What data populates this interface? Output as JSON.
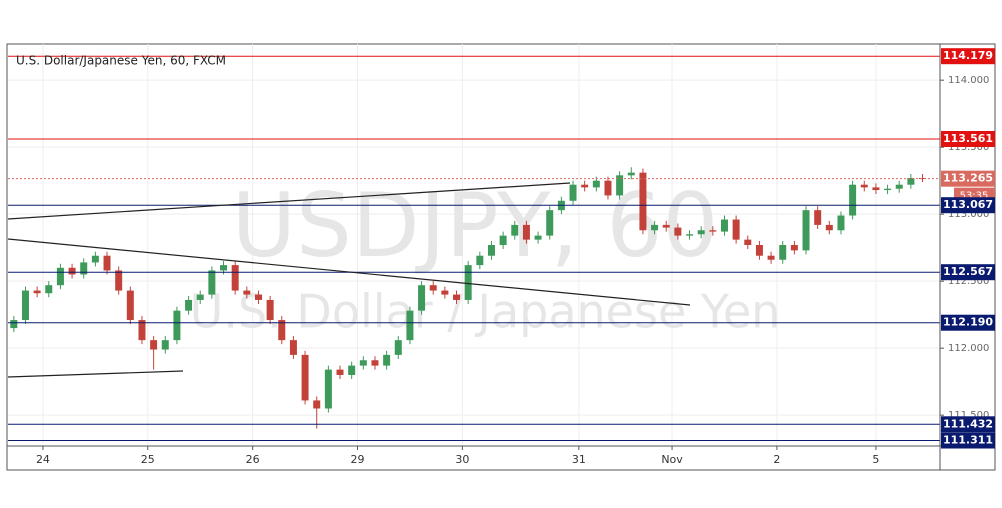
{
  "chart_data": {
    "type": "candlestick",
    "title": "U.S. Dollar/Japanese Yen, 60, FXCM",
    "watermark": "USDJPY, 60",
    "watermark_subtitle": "U.S. Dollar / Japanese Yen",
    "countdown": "53:35",
    "up_color": "#3d9a5a",
    "down_color": "#c2423a",
    "xlim": [
      0,
      80
    ],
    "ylim": [
      111.27,
      114.27
    ],
    "xticks": [
      {
        "value": 3,
        "label": "24"
      },
      {
        "value": 12,
        "label": "25"
      },
      {
        "value": 21,
        "label": "26"
      },
      {
        "value": 30,
        "label": "29"
      },
      {
        "value": 39,
        "label": "30"
      },
      {
        "value": 49,
        "label": "31"
      },
      {
        "value": 57,
        "label": "Nov"
      },
      {
        "value": 66,
        "label": "2"
      },
      {
        "value": 74.5,
        "label": "5"
      }
    ],
    "yticks": [
      {
        "value": 111.5,
        "label": "111.500"
      },
      {
        "value": 112,
        "label": "112.000"
      },
      {
        "value": 112.5,
        "label": "112.500"
      },
      {
        "value": 113,
        "label": "113.000"
      },
      {
        "value": 113.5,
        "label": "113.500"
      },
      {
        "value": 114,
        "label": "114.000"
      }
    ],
    "grid": true,
    "levels": [
      {
        "value": 114.179,
        "label": "114.179",
        "color": "#e31010",
        "dashed": false
      },
      {
        "value": 113.561,
        "label": "113.561",
        "color": "#e31010",
        "dashed": false
      },
      {
        "value": 113.265,
        "label": "113.265",
        "color": "#d86a60",
        "dashed": true
      },
      {
        "value": 113.067,
        "label": "113.067",
        "color": "#0a1a6e",
        "dashed": false
      },
      {
        "value": 112.567,
        "label": "112.567",
        "color": "#0a1a6e",
        "dashed": false
      },
      {
        "value": 112.19,
        "label": "112.190",
        "color": "#0a1a6e",
        "dashed": false
      },
      {
        "value": 111.432,
        "label": "111.432",
        "color": "#0a1a6e",
        "dashed": false
      },
      {
        "value": 111.311,
        "label": "111.311",
        "color": "#0a1a6e",
        "dashed": false
      }
    ],
    "ohlc": [
      [
        112.15,
        112.24,
        112.12,
        112.21
      ],
      [
        112.21,
        112.46,
        112.18,
        112.43
      ],
      [
        112.43,
        112.46,
        112.38,
        112.41
      ],
      [
        112.41,
        112.5,
        112.38,
        112.47
      ],
      [
        112.47,
        112.63,
        112.44,
        112.6
      ],
      [
        112.6,
        112.63,
        112.52,
        112.55
      ],
      [
        112.55,
        112.67,
        112.52,
        112.64
      ],
      [
        112.64,
        112.72,
        112.61,
        112.69
      ],
      [
        112.69,
        112.72,
        112.55,
        112.58
      ],
      [
        112.58,
        112.61,
        112.4,
        112.43
      ],
      [
        112.43,
        112.46,
        112.18,
        112.21
      ],
      [
        112.21,
        112.24,
        112.03,
        112.06
      ],
      [
        112.06,
        112.09,
        111.84,
        111.99
      ],
      [
        111.99,
        112.09,
        111.96,
        112.06
      ],
      [
        112.06,
        112.31,
        112.03,
        112.28
      ],
      [
        112.28,
        112.39,
        112.25,
        112.36
      ],
      [
        112.36,
        112.43,
        112.33,
        112.4
      ],
      [
        112.4,
        112.61,
        112.37,
        112.58
      ],
      [
        112.58,
        112.65,
        112.55,
        112.62
      ],
      [
        112.62,
        112.65,
        112.4,
        112.43
      ],
      [
        112.43,
        112.46,
        112.37,
        112.4
      ],
      [
        112.4,
        112.43,
        112.33,
        112.36
      ],
      [
        112.36,
        112.39,
        112.18,
        112.21
      ],
      [
        112.21,
        112.24,
        112.03,
        112.06
      ],
      [
        112.06,
        112.09,
        111.92,
        111.95
      ],
      [
        111.95,
        111.98,
        111.58,
        111.61
      ],
      [
        111.61,
        111.64,
        111.4,
        111.55
      ],
      [
        111.55,
        111.87,
        111.52,
        111.84
      ],
      [
        111.84,
        111.87,
        111.77,
        111.8
      ],
      [
        111.8,
        111.9,
        111.77,
        111.87
      ],
      [
        111.87,
        111.94,
        111.84,
        111.91
      ],
      [
        111.91,
        111.94,
        111.84,
        111.87
      ],
      [
        111.87,
        111.98,
        111.84,
        111.95
      ],
      [
        111.95,
        112.09,
        111.92,
        112.06
      ],
      [
        112.06,
        112.31,
        112.03,
        112.28
      ],
      [
        112.28,
        112.5,
        112.25,
        112.47
      ],
      [
        112.47,
        112.5,
        112.4,
        112.43
      ],
      [
        112.43,
        112.46,
        112.37,
        112.4
      ],
      [
        112.4,
        112.43,
        112.33,
        112.36
      ],
      [
        112.36,
        112.65,
        112.33,
        112.62
      ],
      [
        112.62,
        112.72,
        112.59,
        112.69
      ],
      [
        112.69,
        112.8,
        112.66,
        112.77
      ],
      [
        112.77,
        112.87,
        112.74,
        112.84
      ],
      [
        112.84,
        112.95,
        112.81,
        112.92
      ],
      [
        112.92,
        112.95,
        112.78,
        112.81
      ],
      [
        112.81,
        112.87,
        112.78,
        112.84
      ],
      [
        112.84,
        113.06,
        112.81,
        113.03
      ],
      [
        113.03,
        113.13,
        113.0,
        113.1
      ],
      [
        113.1,
        113.25,
        113.07,
        113.22
      ],
      [
        113.22,
        113.25,
        113.17,
        113.2
      ],
      [
        113.2,
        113.28,
        113.17,
        113.25
      ],
      [
        113.25,
        113.28,
        113.11,
        113.14
      ],
      [
        113.14,
        113.32,
        113.11,
        113.29
      ],
      [
        113.29,
        113.35,
        113.26,
        113.31
      ],
      [
        113.31,
        113.34,
        112.85,
        112.88
      ],
      [
        112.88,
        112.95,
        112.85,
        112.92
      ],
      [
        112.92,
        112.95,
        112.87,
        112.9
      ],
      [
        112.9,
        112.93,
        112.81,
        112.84
      ],
      [
        112.84,
        112.88,
        112.81,
        112.85
      ],
      [
        112.85,
        112.91,
        112.82,
        112.88
      ],
      [
        112.88,
        112.91,
        112.84,
        112.87
      ],
      [
        112.87,
        112.99,
        112.84,
        112.96
      ],
      [
        112.96,
        112.99,
        112.78,
        112.81
      ],
      [
        112.81,
        112.84,
        112.74,
        112.77
      ],
      [
        112.77,
        112.8,
        112.66,
        112.69
      ],
      [
        112.69,
        112.72,
        112.63,
        112.66
      ],
      [
        112.66,
        112.8,
        112.63,
        112.77
      ],
      [
        112.77,
        112.8,
        112.7,
        112.73
      ],
      [
        112.73,
        113.06,
        112.7,
        113.03
      ],
      [
        113.03,
        113.06,
        112.89,
        112.92
      ],
      [
        112.92,
        112.95,
        112.85,
        112.88
      ],
      [
        112.88,
        113.02,
        112.85,
        112.99
      ],
      [
        112.99,
        113.25,
        112.96,
        113.22
      ],
      [
        113.22,
        113.25,
        113.17,
        113.2
      ],
      [
        113.2,
        113.23,
        113.15,
        113.18
      ],
      [
        113.18,
        113.22,
        113.15,
        113.19
      ],
      [
        113.19,
        113.25,
        113.16,
        113.22
      ],
      [
        113.22,
        113.3,
        113.19,
        113.27
      ],
      [
        113.27,
        113.3,
        113.24,
        113.265
      ]
    ]
  }
}
